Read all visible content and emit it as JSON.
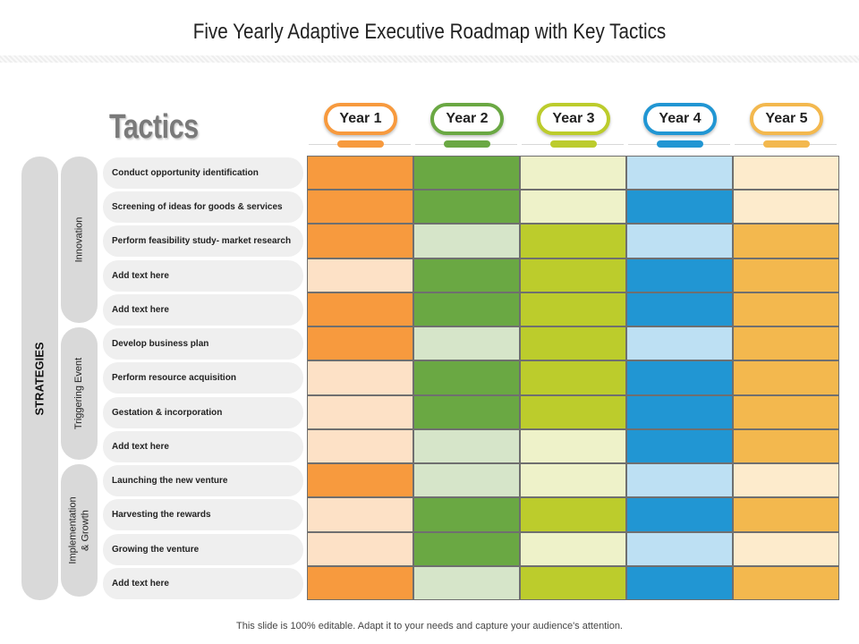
{
  "title": "Five Yearly Adaptive Executive Roadmap with Key Tactics",
  "tactics_heading": "Tactics",
  "strategies_label": "STRATEGIES",
  "years": [
    {
      "label": "Year 1",
      "color": "#f79a3e"
    },
    {
      "label": "Year 2",
      "color": "#6aa843"
    },
    {
      "label": "Year 3",
      "color": "#bccc2c"
    },
    {
      "label": "Year 4",
      "color": "#2196d3"
    },
    {
      "label": "Year 5",
      "color": "#f3b84e"
    }
  ],
  "groups": [
    {
      "label": "Innovation",
      "rows": 5
    },
    {
      "label": "Triggering Event",
      "rows": 4
    },
    {
      "label": "Implementation & Growth",
      "rows": 4
    }
  ],
  "tactics": [
    "Conduct opportunity identification",
    "Screening of ideas for goods & services",
    "Perform feasibility study- market research",
    "Add text here",
    "Add text here",
    "Develop business plan",
    "Perform resource acquisition",
    "Gestation  & incorporation",
    "Add text here",
    "Launching the new venture",
    "Harvesting the rewards",
    "Growing the venture",
    "Add text here"
  ],
  "palette": {
    "orange_dark": "#f79a3e",
    "orange_light": "#fde1c6",
    "green_dark": "#6aa843",
    "green_light": "#d6e5c9",
    "lime_dark": "#bccc2c",
    "lime_light": "#eef2c9",
    "blue_dark": "#2196d3",
    "blue_light": "#bde0f3",
    "gold_dark": "#f3b84e",
    "gold_light": "#fdebcc"
  },
  "matrix": [
    [
      "orange_dark",
      "green_dark",
      "lime_light",
      "blue_light",
      "gold_light"
    ],
    [
      "orange_dark",
      "green_dark",
      "lime_light",
      "blue_dark",
      "gold_light"
    ],
    [
      "orange_dark",
      "green_light",
      "lime_dark",
      "blue_light",
      "gold_dark"
    ],
    [
      "orange_light",
      "green_dark",
      "lime_dark",
      "blue_dark",
      "gold_dark"
    ],
    [
      "orange_dark",
      "green_dark",
      "lime_dark",
      "blue_dark",
      "gold_dark"
    ],
    [
      "orange_dark",
      "green_light",
      "lime_dark",
      "blue_light",
      "gold_dark"
    ],
    [
      "orange_light",
      "green_dark",
      "lime_dark",
      "blue_dark",
      "gold_dark"
    ],
    [
      "orange_light",
      "green_dark",
      "lime_dark",
      "blue_dark",
      "gold_dark"
    ],
    [
      "orange_light",
      "green_light",
      "lime_light",
      "blue_dark",
      "gold_dark"
    ],
    [
      "orange_dark",
      "green_light",
      "lime_light",
      "blue_light",
      "gold_light"
    ],
    [
      "orange_light",
      "green_dark",
      "lime_dark",
      "blue_dark",
      "gold_dark"
    ],
    [
      "orange_light",
      "green_dark",
      "lime_light",
      "blue_light",
      "gold_light"
    ],
    [
      "orange_dark",
      "green_light",
      "lime_dark",
      "blue_dark",
      "gold_dark"
    ]
  ],
  "footer": "This slide is 100% editable.  Adapt it to your needs and capture your audience's attention."
}
